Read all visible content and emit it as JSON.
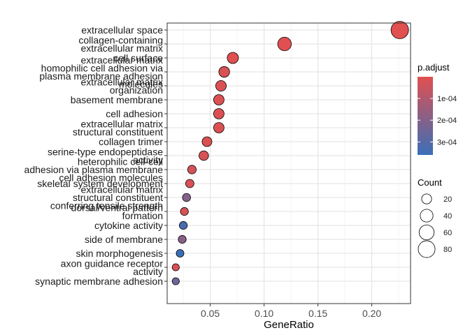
{
  "chart_data": {
    "type": "scatter",
    "xlabel": "GeneRatio",
    "ylabel": "",
    "title": "",
    "xlim": [
      0.01,
      0.236
    ],
    "xticks": [
      0.05,
      0.1,
      0.15,
      0.2
    ],
    "xtick_labels": [
      "0.05",
      "0.10",
      "0.15",
      "0.20"
    ],
    "grid": true,
    "legend_position": "right",
    "color_legend": {
      "title": "p.adjust",
      "ticks": [
        "1e-04",
        "2e-04",
        "3e-04"
      ],
      "tick_values": [
        0.0001,
        0.0002,
        0.0003
      ],
      "range": [
        0.0,
        0.00036
      ],
      "low_color": "#e05050",
      "high_color": "#3a6fb8"
    },
    "size_legend": {
      "title": "Count",
      "values": [
        20,
        40,
        60,
        80
      ],
      "labels": [
        "20",
        "40",
        "60",
        "80"
      ]
    },
    "terms": [
      {
        "label": [
          "extracellular space"
        ],
        "x": 0.226,
        "count": 88,
        "p": 0.0
      },
      {
        "label": [
          "collagen-containing",
          "extracellular matrix"
        ],
        "x": 0.119,
        "count": 47,
        "p": 0.0
      },
      {
        "label": [
          "cell surface"
        ],
        "x": 0.071,
        "count": 28,
        "p": 0.0
      },
      {
        "label": [
          "extracellular matrix",
          "homophilic cell adhesion via",
          "plasma membrane adhesion",
          "molecules"
        ],
        "x": 0.063,
        "count": 25,
        "p": 1e-05
      },
      {
        "label": [
          "extracellular matrix",
          "organization"
        ],
        "x": 0.06,
        "count": 24,
        "p": 1e-05
      },
      {
        "label": [
          "basement membrane"
        ],
        "x": 0.058,
        "count": 23,
        "p": 1e-05
      },
      {
        "label": [
          "cell adhesion"
        ],
        "x": 0.058,
        "count": 23,
        "p": 1e-05
      },
      {
        "label": [
          "extracellular matrix",
          "structural constituent"
        ],
        "x": 0.058,
        "count": 23,
        "p": 1e-05
      },
      {
        "label": [
          "collagen trimer"
        ],
        "x": 0.047,
        "count": 19,
        "p": 1e-05
      },
      {
        "label": [
          "serine-type endopeptidase",
          "activity"
        ],
        "x": 0.044,
        "count": 18,
        "p": 2e-05
      },
      {
        "label": [
          "heterophilic cell-cell",
          "adhesion via plasma membrane",
          "cell adhesion molecules"
        ],
        "x": 0.033,
        "count": 13,
        "p": 3e-05
      },
      {
        "label": [
          "skeletal system development"
        ],
        "x": 0.031,
        "count": 12,
        "p": 2e-05
      },
      {
        "label": [
          "extracellular matrix",
          "structural constituent",
          "conferring tensile strength"
        ],
        "x": 0.028,
        "count": 11,
        "p": 0.0002
      },
      {
        "label": [
          "dorsal/ventral pattern",
          "formation"
        ],
        "x": 0.026,
        "count": 10,
        "p": 2e-05
      },
      {
        "label": [
          "cytokine activity"
        ],
        "x": 0.025,
        "count": 10,
        "p": 0.00033
      },
      {
        "label": [
          "side of membrane"
        ],
        "x": 0.024,
        "count": 10,
        "p": 0.00019
      },
      {
        "label": [
          "skin morphogenesis"
        ],
        "x": 0.022,
        "count": 9,
        "p": 0.00036
      },
      {
        "label": [
          "axon guidance receptor",
          "activity"
        ],
        "x": 0.018,
        "count": 7,
        "p": 2e-05
      },
      {
        "label": [
          "synaptic membrane adhesion"
        ],
        "x": 0.018,
        "count": 7,
        "p": 0.00025
      }
    ]
  }
}
